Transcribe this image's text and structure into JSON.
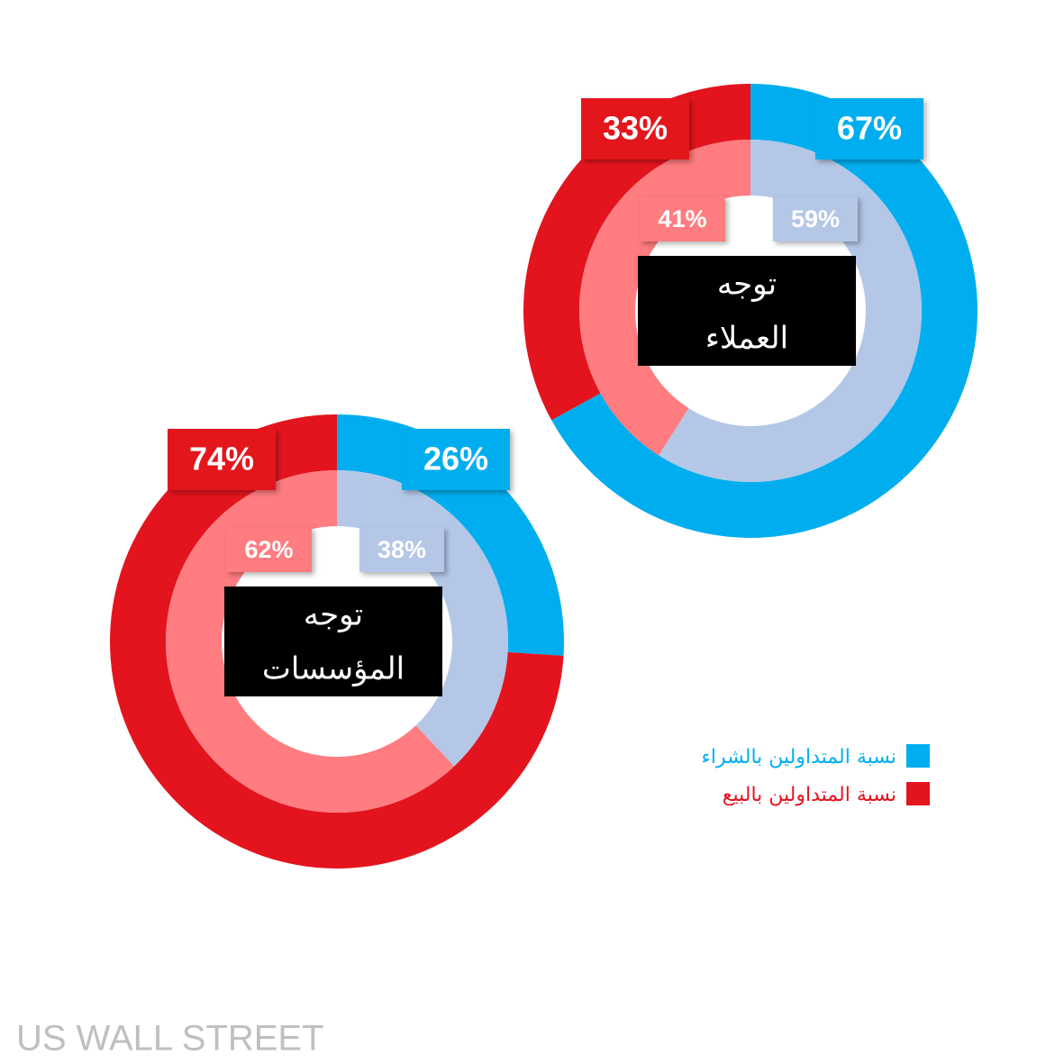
{
  "chart_data": [
    {
      "type": "donut",
      "title": [
        "توجه",
        "العملاء"
      ],
      "rings": [
        {
          "values": [
            67,
            33
          ],
          "value_labels": [
            "67%",
            "33%"
          ],
          "colors": [
            "#00aeef",
            "#e3141e"
          ]
        },
        {
          "values": [
            59,
            41
          ],
          "value_labels": [
            "59%",
            "41%"
          ],
          "colors": [
            "#b4c7e7",
            "#ff7c80"
          ]
        }
      ]
    },
    {
      "type": "donut",
      "title": [
        "توجه",
        "المؤسسات"
      ],
      "rings": [
        {
          "values": [
            26,
            74
          ],
          "value_labels": [
            "26%",
            "74%"
          ],
          "colors": [
            "#00aeef",
            "#e3141e"
          ]
        },
        {
          "values": [
            38,
            62
          ],
          "value_labels": [
            "38%",
            "62%"
          ],
          "colors": [
            "#b4c7e7",
            "#ff7c80"
          ]
        }
      ]
    }
  ],
  "legend": {
    "entries": [
      {
        "name": "نسبة المتداولين بالشراء",
        "color": "#00aeef"
      },
      {
        "name": "نسبة المتداولين بالبيع",
        "color": "#e3141e"
      }
    ]
  },
  "footer": "US WALL STREET"
}
